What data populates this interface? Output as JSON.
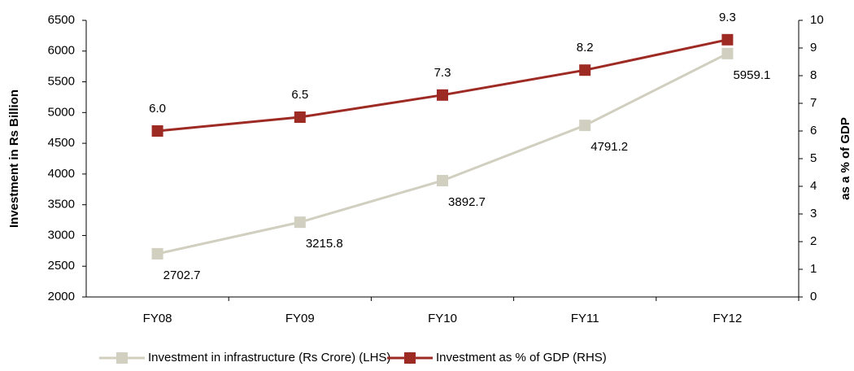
{
  "chart_data": {
    "type": "line",
    "y_label": "Investment in Rs Billion",
    "y2_label": "as a % of GDP",
    "categories": [
      "FY08",
      "FY09",
      "FY10",
      "FY11",
      "FY12"
    ],
    "series": [
      {
        "name": "Investment in infrastructure (Rs Crore) (LHS)",
        "color": "#d1cfbf",
        "values": [
          2702.7,
          3215.8,
          3892.7,
          4791.2,
          5959.1
        ]
      },
      {
        "name": "Investment as % of GDP (RHS)",
        "color": "#9e2a24",
        "axis": "y2",
        "values": [
          6.0,
          6.5,
          7.3,
          8.2,
          9.3
        ],
        "value_labels": [
          "6.0",
          "6.5",
          "7.3",
          "8.2",
          "9.3"
        ]
      }
    ],
    "ylim": [
      2000,
      6500
    ],
    "yticks": [
      2000,
      2500,
      3000,
      3500,
      4000,
      4500,
      5000,
      5500,
      6000,
      6500
    ],
    "y2lim": [
      0,
      10
    ],
    "y2ticks": [
      0,
      1,
      2,
      3,
      4,
      5,
      6,
      7,
      8,
      9,
      10
    ],
    "legend": "bottom"
  }
}
